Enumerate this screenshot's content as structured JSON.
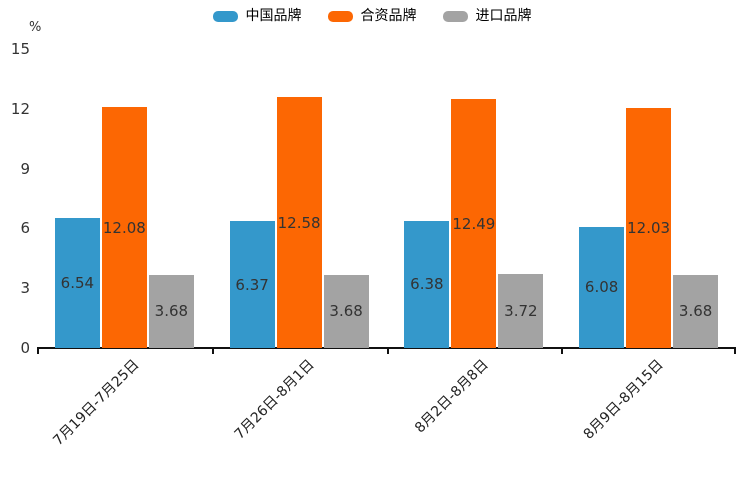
{
  "chart_data": {
    "type": "bar",
    "title": "",
    "xlabel": "",
    "ylabel": "%",
    "ylim": [
      0,
      15
    ],
    "yticks": [
      0,
      3,
      6,
      9,
      12,
      15
    ],
    "grid": false,
    "legend_position": "top-center",
    "value_label_position": "inside-center",
    "categories": [
      "7月19日-7月25日",
      "7月26日-8月1日",
      "8月2日-8月8日",
      "8月9日-8月15日"
    ],
    "series": [
      {
        "name": "中国品牌",
        "color": "#3498cb",
        "values": [
          6.54,
          6.37,
          6.38,
          6.08
        ]
      },
      {
        "name": "合资品牌",
        "color": "#fc6703",
        "values": [
          12.08,
          12.58,
          12.49,
          12.03
        ]
      },
      {
        "name": "进口品牌",
        "color": "#a3a3a3",
        "values": [
          3.68,
          3.68,
          3.72,
          3.68
        ]
      }
    ],
    "axis_color": "#111111",
    "label_text_color": "#333333"
  }
}
